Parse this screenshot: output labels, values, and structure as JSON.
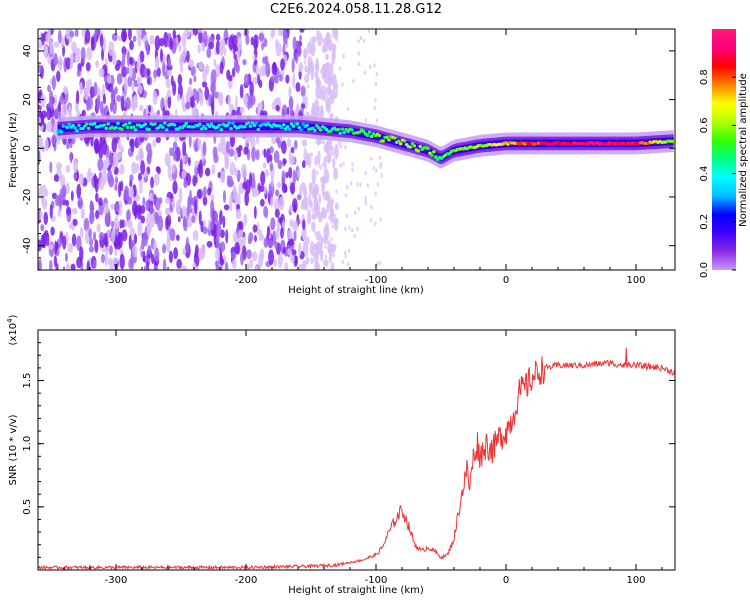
{
  "title": "C2E6.2024.058.11.28.G12",
  "chart_data": [
    {
      "type": "heatmap",
      "description_tag": "spectrogram",
      "xlabel": "Height of straight line (km)",
      "ylabel": "Frequency (Hz)",
      "xlim": [
        -360,
        130
      ],
      "ylim": [
        -50,
        49
      ],
      "xticks": [
        -300,
        -200,
        -100,
        0,
        100
      ],
      "yticks": [
        -40,
        -20,
        0,
        20,
        40
      ],
      "grid": false,
      "colorbar": {
        "label": "Normalized spectral amplitude",
        "range": [
          0,
          1
        ],
        "ticks": [
          0.0,
          0.2,
          0.4,
          0.6,
          0.8
        ],
        "colormap": [
          "#cc99ff",
          "#8a2be2",
          "#3d00ff",
          "#0000ff",
          "#00bfff",
          "#00ffff",
          "#00ff80",
          "#33ff00",
          "#b3ff00",
          "#ffff00",
          "#ff8000",
          "#ff0000",
          "#ff007f",
          "#ff1a75"
        ]
      },
      "ridge": {
        "x": [
          -345,
          -320,
          -160,
          -140,
          -120,
          -100,
          -80,
          -60,
          -50,
          -40,
          -20,
          0,
          20,
          40,
          60,
          80,
          100,
          130
        ],
        "y": [
          8,
          9,
          9,
          8,
          7,
          5,
          2,
          -1,
          -4,
          -1,
          1,
          2,
          2,
          2,
          2,
          2,
          2,
          3
        ],
        "amplitude": [
          0.3,
          0.45,
          0.35,
          0.45,
          0.5,
          0.55,
          0.6,
          0.55,
          0.5,
          0.55,
          0.6,
          0.7,
          0.8,
          0.9,
          0.95,
          0.95,
          0.9,
          0.5
        ]
      },
      "noise_extent_x": [
        -360,
        -155
      ]
    },
    {
      "type": "line",
      "xlabel": "Height of straight line (km)",
      "ylabel": "SNR (10 * v/v)",
      "yscale_label": "(x10",
      "yscale_exponent": "4",
      "yscale_suffix": ")",
      "xlim": [
        -360,
        130
      ],
      "ylim": [
        0,
        1.9
      ],
      "xticks": [
        -300,
        -200,
        -100,
        0,
        100
      ],
      "yticks": [
        0.5,
        1.0,
        1.5
      ],
      "grid": false,
      "color": "#ee3333",
      "series": [
        {
          "x": [
            -360,
            -300,
            -200,
            -150,
            -130,
            -110,
            -100,
            -95,
            -90,
            -85,
            -80,
            -75,
            -70,
            -65,
            -60,
            -55,
            -50,
            -45,
            -40,
            -35,
            -30,
            -28,
            -25,
            -22,
            -20,
            -15,
            -10,
            -5,
            0,
            5,
            10,
            15,
            20,
            25,
            30,
            40,
            60,
            80,
            85,
            90,
            95,
            100,
            110,
            120,
            130
          ],
          "y": [
            0.02,
            0.02,
            0.02,
            0.03,
            0.04,
            0.08,
            0.12,
            0.18,
            0.3,
            0.4,
            0.48,
            0.35,
            0.2,
            0.15,
            0.18,
            0.15,
            0.1,
            0.12,
            0.25,
            0.55,
            0.8,
            0.65,
            0.9,
            1.0,
            0.9,
            1.0,
            0.95,
            1.05,
            1.1,
            1.2,
            1.4,
            1.45,
            1.52,
            1.57,
            1.6,
            1.62,
            1.62,
            1.64,
            1.63,
            1.62,
            1.63,
            1.62,
            1.61,
            1.6,
            1.56
          ]
        }
      ]
    }
  ]
}
